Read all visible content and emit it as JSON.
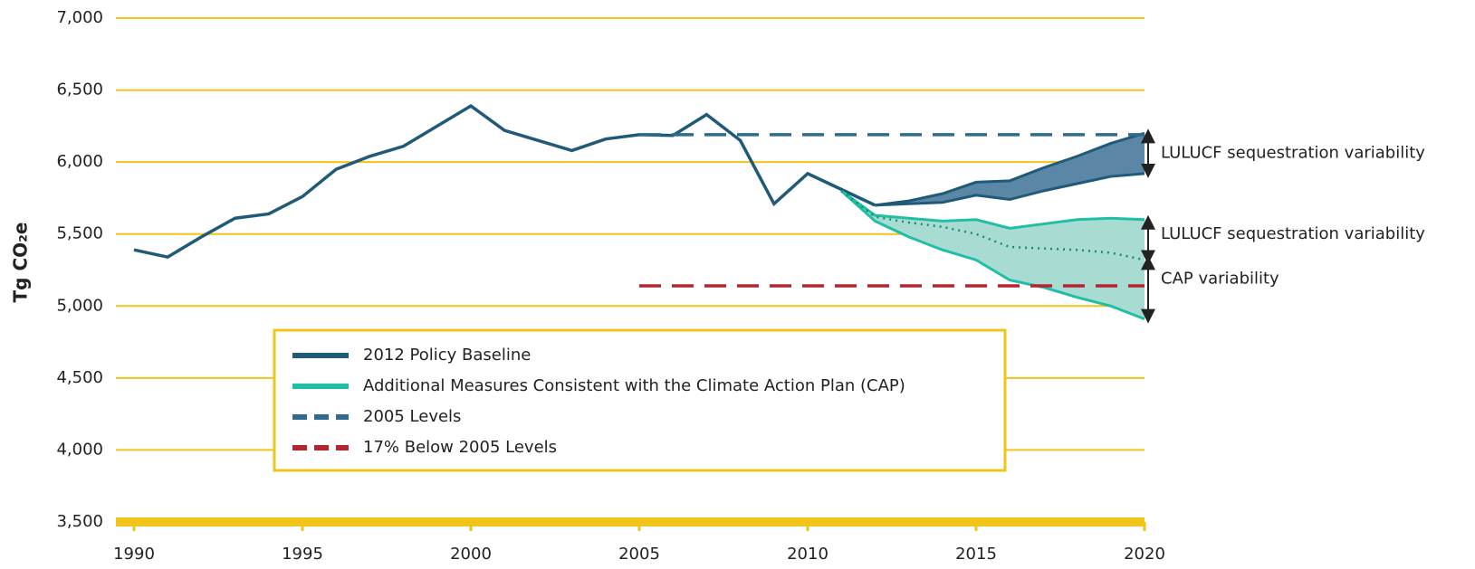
{
  "chart_data": {
    "type": "line",
    "y_label": "Tg CO₂e",
    "xlim": [
      1990,
      2020
    ],
    "xticks": [
      1990,
      1995,
      2000,
      2005,
      2010,
      2015,
      2020
    ],
    "ylim": [
      3500,
      7000
    ],
    "yticks": [
      {
        "value": 3500,
        "label": "3,500"
      },
      {
        "value": 4000,
        "label": "4,000"
      },
      {
        "value": 4500,
        "label": "4,500"
      },
      {
        "value": 5000,
        "label": "5,000"
      },
      {
        "value": 5500,
        "label": "5,500"
      },
      {
        "value": 6000,
        "label": "6,000"
      },
      {
        "value": 6500,
        "label": "6,500"
      },
      {
        "value": 7000,
        "label": "7,000"
      }
    ],
    "grid": true,
    "grid_color": "#f0c419",
    "series": [
      {
        "name": "2012 Policy Baseline",
        "color": "#1f5a78",
        "dash": false,
        "x": [
          1990,
          1991,
          1992,
          1993,
          1994,
          1995,
          1996,
          1997,
          1998,
          1999,
          2000,
          2001,
          2002,
          2003,
          2004,
          2005,
          2006,
          2007,
          2008,
          2009,
          2010,
          2011,
          2012
        ],
        "values": [
          5390,
          5340,
          5480,
          5610,
          5640,
          5760,
          5950,
          6040,
          6110,
          6250,
          6390,
          6220,
          6150,
          6080,
          6160,
          6190,
          6185,
          6330,
          6150,
          5710,
          5920,
          5810,
          5700
        ],
        "projection": {
          "fill": "#5b86a6",
          "x": [
            2012,
            2013,
            2014,
            2015,
            2016,
            2017,
            2018,
            2019,
            2020
          ],
          "upper": [
            5700,
            5730,
            5780,
            5860,
            5870,
            5960,
            6040,
            6130,
            6200
          ],
          "lower": [
            5700,
            5710,
            5720,
            5770,
            5740,
            5800,
            5850,
            5900,
            5920
          ]
        }
      },
      {
        "name": "Additional Measures Consistent with the Climate Action Plan (CAP)",
        "color": "#1fbfa6",
        "dash": false,
        "projection": {
          "fill": "#a8dcd2",
          "x": [
            2011,
            2012,
            2013,
            2014,
            2015,
            2016,
            2017,
            2018,
            2019,
            2020
          ],
          "upper": [
            5800,
            5630,
            5610,
            5590,
            5600,
            5540,
            5570,
            5600,
            5610,
            5600
          ],
          "middle": [
            5800,
            5620,
            5580,
            5550,
            5500,
            5410,
            5400,
            5390,
            5370,
            5320
          ],
          "lower": [
            5800,
            5590,
            5480,
            5390,
            5320,
            5180,
            5130,
            5060,
            5000,
            4910
          ]
        }
      },
      {
        "name": "2005 Levels",
        "color": "#2f6b8c",
        "dash": true,
        "x": [
          2005,
          2020
        ],
        "values": [
          6190,
          6190
        ]
      },
      {
        "name": "17% Below 2005 Levels",
        "color": "#b5252e",
        "dash": true,
        "x": [
          2005,
          2020
        ],
        "values": [
          5140,
          5140
        ]
      }
    ],
    "annotations": [
      "LULUCF sequestration variability",
      "LULUCF sequestration variability",
      "CAP variability"
    ]
  }
}
